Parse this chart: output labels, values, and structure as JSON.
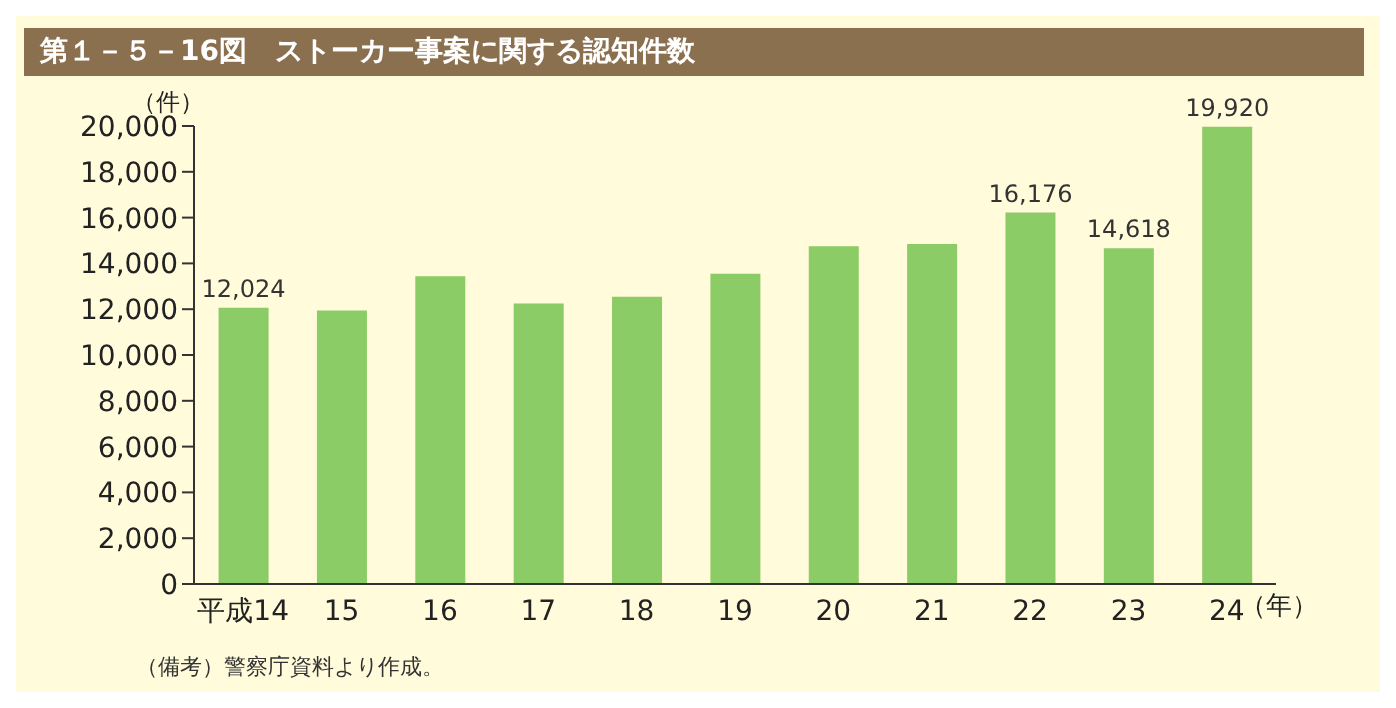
{
  "chart_data": {
    "type": "bar",
    "title": "第１－５－16図　ストーカー事案に関する認知件数",
    "ylabel": "（件）",
    "xlabel": "（年）",
    "categories": [
      "平成14",
      "15",
      "16",
      "17",
      "18",
      "19",
      "20",
      "21",
      "22",
      "23",
      "24"
    ],
    "values": [
      12024,
      11900,
      13400,
      12200,
      12500,
      13500,
      14700,
      14800,
      16176,
      14618,
      19920
    ],
    "value_labels": [
      "12,024",
      null,
      null,
      null,
      null,
      null,
      null,
      null,
      "16,176",
      "14,618",
      "19,920"
    ],
    "color": "#8ccc66",
    "ylim": [
      0,
      20000
    ],
    "yticks": [
      0,
      {
        "value": 2000,
        "label": "2,000"
      },
      {
        "value": 4000,
        "label": "4,000"
      },
      {
        "value": 6000,
        "label": "6,000"
      },
      {
        "value": 8000,
        "label": "8,000"
      },
      {
        "value": 10000,
        "label": "10,000"
      },
      {
        "value": 12000,
        "label": "12,000"
      },
      {
        "value": 14000,
        "label": "14,000"
      },
      {
        "value": 16000,
        "label": "16,000"
      },
      {
        "value": 18000,
        "label": "18,000"
      },
      {
        "value": 20000,
        "label": "20,000"
      }
    ],
    "annotations": [
      "（備考）警察庁資料より作成。"
    ]
  }
}
